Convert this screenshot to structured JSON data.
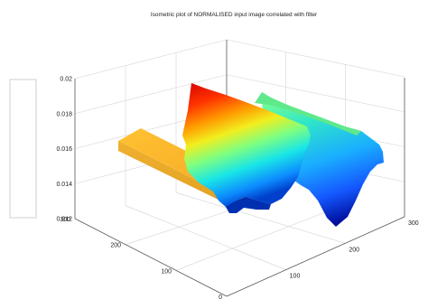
{
  "chart_data": {
    "type": "surface",
    "title": "Isometric plot of NORMALISED input image correlated with filter",
    "xlabel": "",
    "ylabel": "",
    "zlabel": "",
    "x_ticks": [
      "0",
      "100",
      "200",
      "300"
    ],
    "y_ticks": [
      "0",
      "100",
      "200",
      "300"
    ],
    "z_ticks": [
      "0.012",
      "0.014",
      "0.016",
      "0.018",
      "0.02"
    ],
    "xlim": [
      0,
      300
    ],
    "ylim": [
      0,
      300
    ],
    "zlim": [
      0.012,
      0.02
    ],
    "colormap": "jet",
    "grid": true,
    "features": [
      {
        "type": "bar",
        "x": [
          0,
          30
        ],
        "y": [
          80,
          300
        ],
        "z": [
          0.0132,
          0.0155
        ]
      },
      {
        "type": "ridge",
        "x": [
          110,
          170
        ],
        "y": [
          80,
          300
        ],
        "z": [
          0.0126,
          0.0198
        ]
      },
      {
        "type": "trough",
        "x": [
          170,
          240
        ],
        "y": [
          80,
          300
        ],
        "z": [
          0.0114,
          0.018
        ]
      }
    ]
  }
}
